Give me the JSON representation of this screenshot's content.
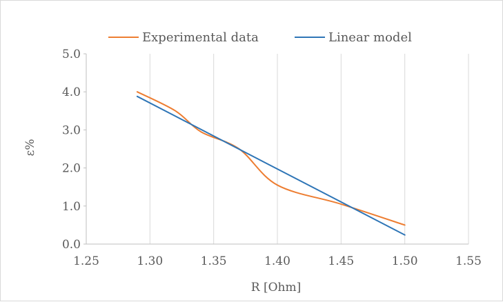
{
  "chart_data": {
    "type": "line",
    "xlabel": "R [Ohm]",
    "ylabel": "ε%",
    "xlim": [
      1.25,
      1.55
    ],
    "ylim": [
      0.0,
      5.0
    ],
    "x_ticks": [
      "1.25",
      "1.30",
      "1.35",
      "1.40",
      "1.45",
      "1.50",
      "1.55"
    ],
    "y_ticks": [
      "0.0",
      "1.0",
      "2.0",
      "3.0",
      "4.0",
      "5.0"
    ],
    "grid": "vertical",
    "legend": "top",
    "series": [
      {
        "name": "Experimental data",
        "color": "#ED7D31",
        "style": "smooth",
        "x": [
          1.29,
          1.32,
          1.34,
          1.37,
          1.4,
          1.45,
          1.5
        ],
        "y": [
          4.0,
          3.5,
          2.95,
          2.5,
          1.55,
          1.05,
          0.5
        ]
      },
      {
        "name": "Linear model",
        "color": "#2E75B6",
        "style": "straight",
        "x": [
          1.29,
          1.5
        ],
        "y": [
          3.88,
          0.24
        ]
      }
    ]
  }
}
